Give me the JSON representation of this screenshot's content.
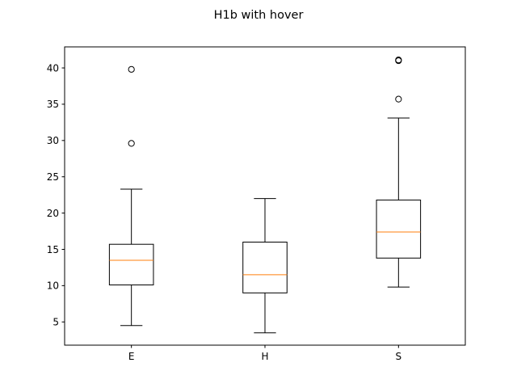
{
  "chart_data": {
    "type": "box",
    "title": "H1b with hover",
    "xlabel": "",
    "ylabel": "",
    "ylim": [
      1.8,
      42.9
    ],
    "yticks": [
      5,
      10,
      15,
      20,
      25,
      30,
      35,
      40
    ],
    "categories": [
      "E",
      "H",
      "S"
    ],
    "boxes": [
      {
        "name": "E",
        "whisker_low": 4.5,
        "q1": 10.1,
        "median": 13.5,
        "q3": 15.7,
        "whisker_high": 23.3,
        "outliers": [
          29.6,
          39.8
        ]
      },
      {
        "name": "H",
        "whisker_low": 3.5,
        "q1": 9.0,
        "median": 11.5,
        "q3": 16.0,
        "whisker_high": 22.0,
        "outliers": []
      },
      {
        "name": "S",
        "whisker_low": 9.8,
        "q1": 13.8,
        "median": 17.4,
        "q3": 21.8,
        "whisker_high": 33.1,
        "outliers": [
          35.7,
          41.0,
          41.1
        ]
      }
    ],
    "grid": false,
    "colors": {
      "box": "#000000",
      "median": "#ff7f0e",
      "outlier": "#000000"
    }
  }
}
